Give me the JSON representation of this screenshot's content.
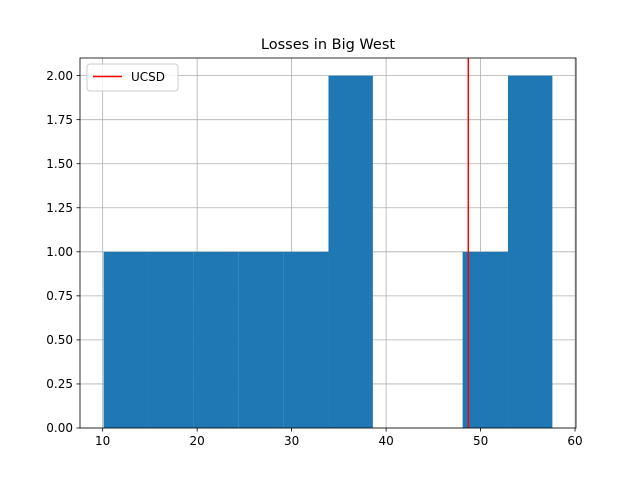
{
  "chart_data": {
    "type": "bar",
    "title": "Losses in Big West",
    "xlabel": "",
    "ylabel": "",
    "xlim": [
      7.6,
      60.1
    ],
    "ylim": [
      0,
      2.1
    ],
    "xticks": [
      10,
      20,
      30,
      40,
      50,
      60
    ],
    "xtick_labels": [
      "10",
      "20",
      "30",
      "40",
      "50",
      "60"
    ],
    "yticks": [
      0,
      0.25,
      0.5,
      0.75,
      1.0,
      1.25,
      1.5,
      1.75,
      2.0
    ],
    "ytick_labels": [
      "0.00",
      "0.25",
      "0.50",
      "0.75",
      "1.00",
      "1.25",
      "1.50",
      "1.75",
      "2.00"
    ],
    "grid": true,
    "bins": [
      {
        "x0": 10.1,
        "x1": 14.9,
        "count": 1
      },
      {
        "x0": 14.9,
        "x1": 19.6,
        "count": 1
      },
      {
        "x0": 19.6,
        "x1": 24.4,
        "count": 1
      },
      {
        "x0": 24.4,
        "x1": 29.1,
        "count": 1
      },
      {
        "x0": 29.1,
        "x1": 33.9,
        "count": 1
      },
      {
        "x0": 33.9,
        "x1": 38.6,
        "count": 2
      },
      {
        "x0": 38.6,
        "x1": 43.4,
        "count": 0
      },
      {
        "x0": 43.4,
        "x1": 48.1,
        "count": 0
      },
      {
        "x0": 48.1,
        "x1": 52.9,
        "count": 1
      },
      {
        "x0": 52.9,
        "x1": 57.6,
        "count": 2
      }
    ],
    "bar_color": "#1f77b4",
    "reference_line": {
      "name": "UCSD",
      "x": 48.7,
      "color": "#ff0000"
    },
    "legend": {
      "placement": "upper-left",
      "entries": [
        "UCSD"
      ]
    }
  }
}
